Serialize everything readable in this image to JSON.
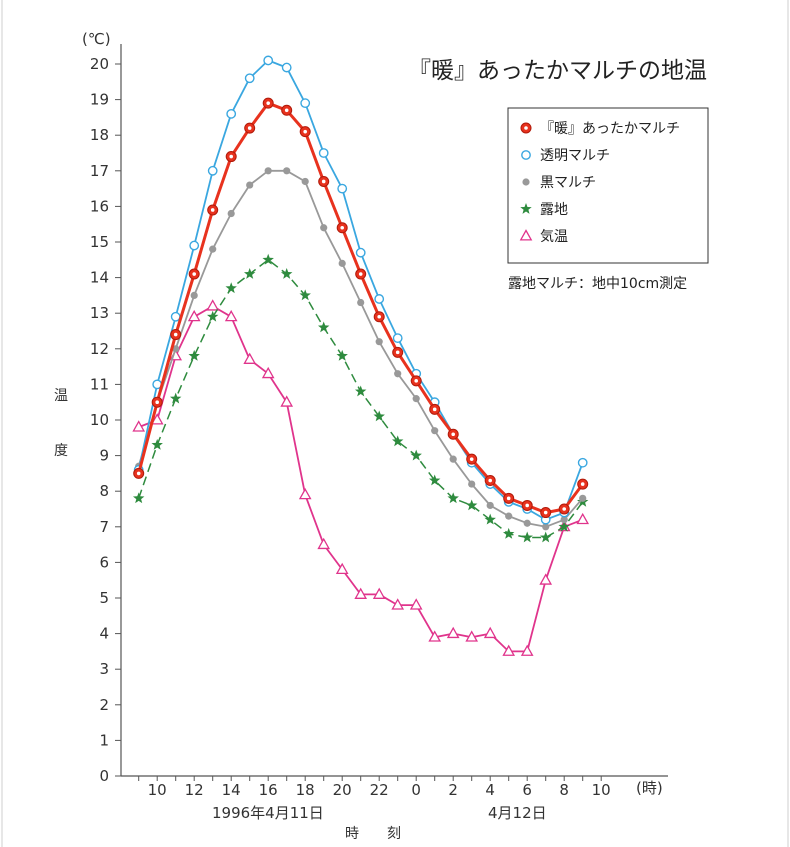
{
  "chart_data": {
    "type": "line",
    "title": "『暖』あったかマルチの地温",
    "y_unit": "(℃)",
    "x_unit": "(時)",
    "ylabel": [
      "温",
      "度"
    ],
    "xlabel": "時　　刻",
    "date_labels": [
      "1996年4月11日",
      "4月12日"
    ],
    "note": "露地マルチ：地中10cm測定",
    "ylim": [
      0,
      20
    ],
    "y_ticks": [
      "0",
      "1",
      "2",
      "3",
      "4",
      "5",
      "6",
      "7",
      "8",
      "9",
      "10",
      "11",
      "12",
      "13",
      "14",
      "15",
      "16",
      "17",
      "18",
      "19",
      "20"
    ],
    "x_ticks": [
      "10",
      "12",
      "14",
      "16",
      "18",
      "20",
      "22",
      "0",
      "2",
      "4",
      "6",
      "8",
      "10"
    ],
    "x": [
      9,
      10,
      11,
      12,
      13,
      14,
      15,
      16,
      17,
      18,
      19,
      20,
      21,
      22,
      23,
      24,
      25,
      26,
      27,
      28,
      29,
      30,
      31,
      32,
      33
    ],
    "series": [
      {
        "name": "『暖』あったかマルチ",
        "color": "#e8321e",
        "marker": "circle-dot",
        "values": [
          8.5,
          10.5,
          12.4,
          14.1,
          15.9,
          17.4,
          18.2,
          18.9,
          18.7,
          18.1,
          16.7,
          15.4,
          14.1,
          12.9,
          11.9,
          11.1,
          10.3,
          9.6,
          8.9,
          8.3,
          7.8,
          7.6,
          7.4,
          7.5,
          8.2
        ]
      },
      {
        "name": "透明マルチ",
        "color": "#3aa7e0",
        "marker": "circle-open",
        "values": [
          8.6,
          11.0,
          12.9,
          14.9,
          17.0,
          18.6,
          19.6,
          20.1,
          19.9,
          18.9,
          17.5,
          16.5,
          14.7,
          13.4,
          12.3,
          11.3,
          10.5,
          9.6,
          8.8,
          8.2,
          7.7,
          7.5,
          7.2,
          7.4,
          8.8
        ]
      },
      {
        "name": "黒マルチ",
        "color": "#999999",
        "marker": "dot",
        "values": [
          8.7,
          10.5,
          12.0,
          13.5,
          14.8,
          15.8,
          16.6,
          17.0,
          17.0,
          16.7,
          15.4,
          14.4,
          13.3,
          12.2,
          11.3,
          10.6,
          9.7,
          8.9,
          8.2,
          7.6,
          7.3,
          7.1,
          7.0,
          7.2,
          7.8
        ]
      },
      {
        "name": "露地",
        "color": "#2e8b3e",
        "marker": "star",
        "values": [
          7.8,
          9.3,
          10.6,
          11.8,
          12.9,
          13.7,
          14.1,
          14.5,
          14.1,
          13.5,
          12.6,
          11.8,
          10.8,
          10.1,
          9.4,
          9.0,
          8.3,
          7.8,
          7.6,
          7.2,
          6.8,
          6.7,
          6.7,
          7.0,
          7.7
        ]
      },
      {
        "name": "気温",
        "color": "#e0348c",
        "marker": "triangle-open",
        "values": [
          9.8,
          10.0,
          11.8,
          12.9,
          13.2,
          12.9,
          11.7,
          11.3,
          10.5,
          7.9,
          6.5,
          5.8,
          5.1,
          5.1,
          4.8,
          4.8,
          3.9,
          4.0,
          3.9,
          4.0,
          3.5,
          3.5,
          5.5,
          7.0,
          7.2
        ]
      }
    ],
    "grid": false,
    "legend_position": "top-right"
  }
}
